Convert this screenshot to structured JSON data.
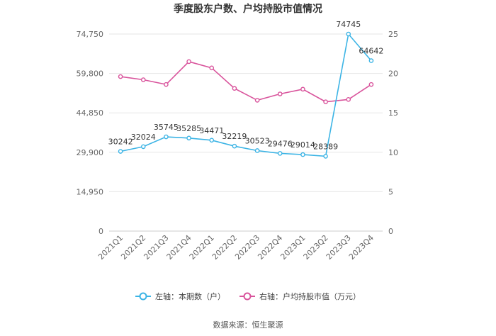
{
  "chart_data": {
    "type": "line",
    "title": "季度股东户数、户均持股市值情况",
    "categories": [
      "2021Q1",
      "2021Q2",
      "2021Q3",
      "2021Q4",
      "2022Q1",
      "2022Q2",
      "2022Q3",
      "2022Q4",
      "2023Q1",
      "2023Q2",
      "2023Q3",
      "2023Q4"
    ],
    "series": [
      {
        "name": "左轴：本期数（户）",
        "axis": "left",
        "color": "#3cb4e5",
        "values": [
          30242,
          32024,
          35745,
          35285,
          34471,
          32219,
          30523,
          29476,
          29014,
          28389,
          74745,
          64642
        ],
        "labels": [
          "30242",
          "32024",
          "35745",
          "35285",
          "34471",
          "32219",
          "30523",
          "29476",
          "29014",
          "28389",
          "74745",
          "64642"
        ]
      },
      {
        "name": "右轴：户均持股市值（万元）",
        "axis": "right",
        "color": "#d9549c",
        "values": [
          19.6,
          19.2,
          18.6,
          21.5,
          20.7,
          18.1,
          16.6,
          17.4,
          18.0,
          16.4,
          16.7,
          18.6
        ]
      }
    ],
    "yleft": {
      "min": 0,
      "max": 74750,
      "ticks": [
        0,
        14950,
        29900,
        44850,
        59800,
        74750
      ],
      "tick_labels": [
        "0",
        "14,950",
        "29,900",
        "44,850",
        "59,800",
        "74,750"
      ]
    },
    "yright": {
      "min": 0,
      "max": 25,
      "ticks": [
        0,
        5,
        10,
        15,
        20,
        25
      ],
      "tick_labels": [
        "0",
        "5",
        "10",
        "15",
        "20",
        "25"
      ]
    },
    "grid": true,
    "legend_position": "bottom-center"
  },
  "source": "数据来源：恒生聚源"
}
